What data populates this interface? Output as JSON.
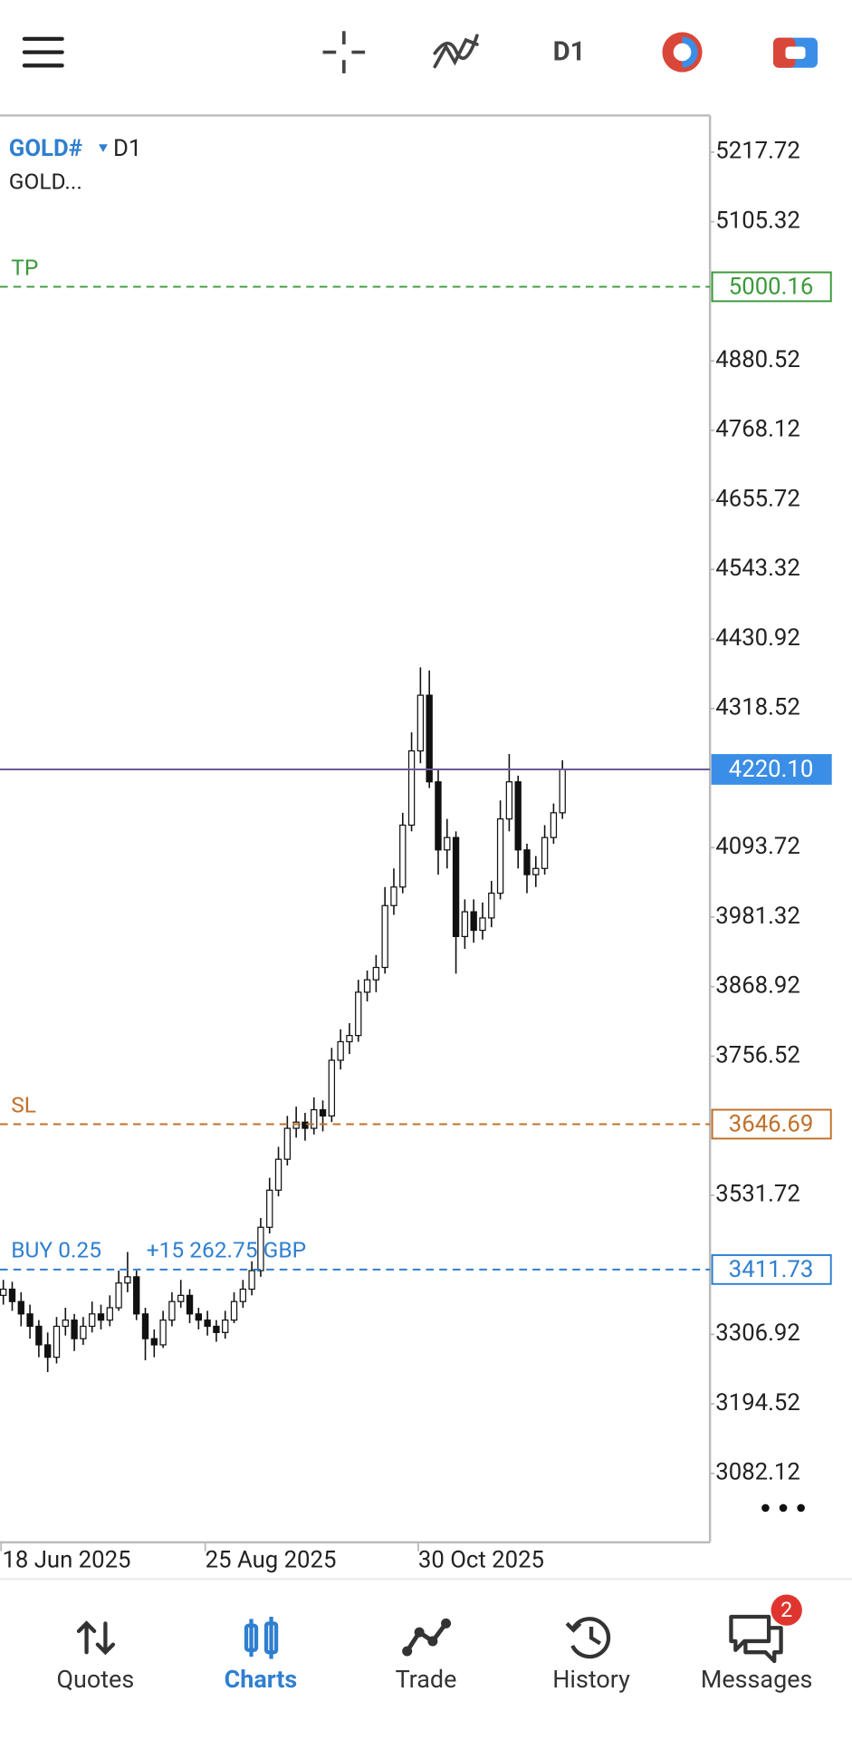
{
  "toolbar": {
    "timeframe": "D1"
  },
  "chart_data": {
    "type": "candlestick",
    "symbol": "GOLD#",
    "timeframe": "D1",
    "description": "GOLD...",
    "ylim": [
      2970.8,
      5277.0
    ],
    "yticks": [
      5217.72,
      5105.32,
      4880.52,
      4768.12,
      4655.72,
      4543.32,
      4430.92,
      4318.52,
      4093.72,
      3981.32,
      3868.92,
      3756.52,
      3531.72,
      3306.92,
      3194.52,
      3082.12
    ],
    "xticks": [
      {
        "value": 0,
        "label": "18 Jun 2025"
      },
      {
        "value": 23,
        "label": "25 Aug 2025"
      },
      {
        "value": 47,
        "label": "30 Oct 2025"
      }
    ],
    "levels": [
      {
        "name": "TP",
        "value": 5000.16,
        "color": "#3a9a3a",
        "style": "dashed"
      },
      {
        "name": "SL",
        "value": 3646.69,
        "color": "#c0702a",
        "style": "dashed"
      },
      {
        "name": "BUY 0.25",
        "profit": "+15 262.75 GBP",
        "value": 3411.73,
        "color": "#2f7fd0",
        "style": "dashed"
      },
      {
        "value": 4220.1,
        "value_label": "4220.10",
        "color": "#6b5b9a",
        "style": "solid"
      }
    ],
    "candles": [
      [
        3370,
        3395,
        3355,
        3380
      ],
      [
        3380,
        3392,
        3345,
        3360
      ],
      [
        3360,
        3375,
        3320,
        3340
      ],
      [
        3340,
        3355,
        3300,
        3320
      ],
      [
        3320,
        3330,
        3270,
        3290
      ],
      [
        3290,
        3310,
        3246,
        3270
      ],
      [
        3270,
        3335,
        3260,
        3320
      ],
      [
        3320,
        3350,
        3305,
        3330
      ],
      [
        3330,
        3340,
        3280,
        3300
      ],
      [
        3300,
        3335,
        3290,
        3320
      ],
      [
        3320,
        3360,
        3310,
        3340
      ],
      [
        3340,
        3355,
        3315,
        3330
      ],
      [
        3330,
        3370,
        3320,
        3350
      ],
      [
        3350,
        3410,
        3345,
        3390
      ],
      [
        3390,
        3440,
        3375,
        3400
      ],
      [
        3400,
        3410,
        3330,
        3340
      ],
      [
        3340,
        3350,
        3265,
        3300
      ],
      [
        3300,
        3315,
        3270,
        3290
      ],
      [
        3290,
        3345,
        3285,
        3330
      ],
      [
        3330,
        3375,
        3320,
        3360
      ],
      [
        3360,
        3395,
        3350,
        3370
      ],
      [
        3370,
        3380,
        3325,
        3340
      ],
      [
        3340,
        3350,
        3315,
        3330
      ],
      [
        3330,
        3345,
        3305,
        3320
      ],
      [
        3320,
        3330,
        3295,
        3310
      ],
      [
        3310,
        3345,
        3300,
        3330
      ],
      [
        3330,
        3375,
        3325,
        3360
      ],
      [
        3360,
        3395,
        3350,
        3380
      ],
      [
        3380,
        3425,
        3370,
        3410
      ],
      [
        3410,
        3495,
        3400,
        3480
      ],
      [
        3480,
        3560,
        3470,
        3540
      ],
      [
        3540,
        3610,
        3530,
        3590
      ],
      [
        3590,
        3660,
        3580,
        3640
      ],
      [
        3640,
        3675,
        3625,
        3650
      ],
      [
        3650,
        3665,
        3620,
        3640
      ],
      [
        3640,
        3690,
        3630,
        3670
      ],
      [
        3670,
        3685,
        3635,
        3660
      ],
      [
        3660,
        3770,
        3650,
        3750
      ],
      [
        3750,
        3800,
        3735,
        3780
      ],
      [
        3780,
        3810,
        3760,
        3790
      ],
      [
        3790,
        3880,
        3780,
        3860
      ],
      [
        3860,
        3895,
        3845,
        3880
      ],
      [
        3880,
        3920,
        3860,
        3900
      ],
      [
        3900,
        4030,
        3890,
        4000
      ],
      [
        4000,
        4060,
        3985,
        4030
      ],
      [
        4030,
        4150,
        4020,
        4130
      ],
      [
        4130,
        4280,
        4120,
        4250
      ],
      [
        4250,
        4385,
        4230,
        4340
      ],
      [
        4340,
        4380,
        4190,
        4200
      ],
      [
        4200,
        4220,
        4050,
        4090
      ],
      [
        4090,
        4140,
        4060,
        4110
      ],
      [
        4110,
        4120,
        3890,
        3950
      ],
      [
        3950,
        4010,
        3930,
        3990
      ],
      [
        3990,
        4010,
        3940,
        3960
      ],
      [
        3960,
        4005,
        3945,
        3980
      ],
      [
        3980,
        4040,
        3965,
        4020
      ],
      [
        4020,
        4170,
        4010,
        4140
      ],
      [
        4140,
        4245,
        4120,
        4200
      ],
      [
        4200,
        4210,
        4060,
        4090
      ],
      [
        4090,
        4100,
        4020,
        4050
      ],
      [
        4050,
        4080,
        4030,
        4060
      ],
      [
        4060,
        4130,
        4050,
        4110
      ],
      [
        4110,
        4165,
        4100,
        4150
      ],
      [
        4150,
        4235,
        4140,
        4220.1
      ]
    ]
  },
  "nav": {
    "tabs": [
      {
        "label": "Quotes"
      },
      {
        "label": "Charts"
      },
      {
        "label": "Trade"
      },
      {
        "label": "History"
      },
      {
        "label": "Messages"
      }
    ],
    "active": 1,
    "badge": 2
  }
}
